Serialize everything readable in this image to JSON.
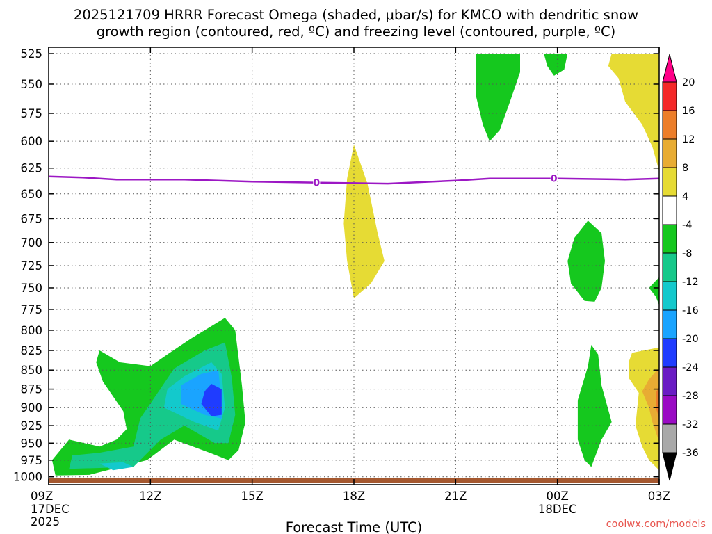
{
  "chart_data": {
    "type": "heatmap",
    "title_line1": "2025121709 HRRR Forecast Omega (shaded, μbar/s) for KMCO with dendritic snow",
    "title_line2": "growth region (contoured, red, ºC) and freezing level (contoured, purple, ºC)",
    "xlabel": "Forecast Time (UTC)",
    "credit": "coolwx.com/models",
    "x_ticks": [
      {
        "hour": 0,
        "l1": "09Z",
        "l2": "17DEC",
        "l3": "2025"
      },
      {
        "hour": 3,
        "l1": "12Z",
        "l2": "",
        "l3": ""
      },
      {
        "hour": 6,
        "l1": "15Z",
        "l2": "",
        "l3": ""
      },
      {
        "hour": 9,
        "l1": "18Z",
        "l2": "",
        "l3": ""
      },
      {
        "hour": 12,
        "l1": "21Z",
        "l2": "",
        "l3": ""
      },
      {
        "hour": 15,
        "l1": "00Z",
        "l2": "18DEC",
        "l3": ""
      },
      {
        "hour": 18,
        "l1": "03Z",
        "l2": "",
        "l3": ""
      }
    ],
    "xlim": [
      0,
      18
    ],
    "y_levels": [
      "525",
      "550",
      "575",
      "600",
      "625",
      "650",
      "675",
      "700",
      "725",
      "750",
      "775",
      "800",
      "825",
      "850",
      "875",
      "900",
      "925",
      "950",
      "975",
      "1000"
    ],
    "ylim_hpa": [
      520,
      1012
    ],
    "y_axis": "log-pressure",
    "freezing_level": {
      "label": "0",
      "color": "#9c17c4",
      "label_hours": [
        7.9,
        14.9
      ],
      "points": [
        [
          0,
          633
        ],
        [
          1,
          634
        ],
        [
          2,
          636
        ],
        [
          4,
          636
        ],
        [
          6,
          638
        ],
        [
          8,
          639
        ],
        [
          10,
          640
        ],
        [
          12,
          637
        ],
        [
          13,
          635
        ],
        [
          15,
          635
        ],
        [
          17,
          636
        ],
        [
          18,
          635
        ]
      ]
    },
    "colorbar": {
      "levels": [
        "20",
        "16",
        "12",
        "8",
        "4",
        "-4",
        "-8",
        "-12",
        "-16",
        "-20",
        "-24",
        "-28",
        "-32",
        "-36"
      ],
      "colors": [
        "#ff0088",
        "#f42828",
        "#ec7e2a",
        "#e8ac33",
        "#e6db34",
        "#ffffff",
        "#15c81e",
        "#16c98a",
        "#13c9cc",
        "#1aa4ff",
        "#1f3cff",
        "#6a1cc4",
        "#9a0bc4",
        "#a9a9a9",
        "#000000"
      ]
    },
    "shaded_regions": [
      {
        "name": "green-top-15z",
        "value": "-4 to -8",
        "color": "#15c81e",
        "points": [
          [
            14.6,
            525
          ],
          [
            15.3,
            525
          ],
          [
            15.2,
            538
          ],
          [
            14.9,
            543
          ],
          [
            14.7,
            535
          ]
        ]
      },
      {
        "name": "green-top-22z",
        "value": "-4 to -8",
        "color": "#15c81e",
        "points": [
          [
            12.6,
            525
          ],
          [
            13.9,
            525
          ],
          [
            13.9,
            540
          ],
          [
            13.6,
            565
          ],
          [
            13.3,
            590
          ],
          [
            13.0,
            600
          ],
          [
            12.8,
            585
          ],
          [
            12.6,
            560
          ],
          [
            12.6,
            540
          ]
        ]
      },
      {
        "name": "green-mid-16z",
        "value": "-4 to -8",
        "color": "#15c81e",
        "points": [
          [
            15.9,
            677
          ],
          [
            16.3,
            690
          ],
          [
            16.4,
            720
          ],
          [
            16.3,
            750
          ],
          [
            16.1,
            766
          ],
          [
            15.8,
            765
          ],
          [
            15.4,
            745
          ],
          [
            15.3,
            720
          ],
          [
            15.5,
            695
          ]
        ]
      },
      {
        "name": "green-right-edge-upper",
        "value": "-4 to -8",
        "color": "#15c81e",
        "points": [
          [
            17.7,
            750
          ],
          [
            18.0,
            738
          ],
          [
            18.0,
            770
          ],
          [
            17.9,
            760
          ]
        ]
      },
      {
        "name": "green-00z-lower",
        "value": "-4 to -8",
        "color": "#15c81e",
        "points": [
          [
            16.0,
            818
          ],
          [
            16.2,
            830
          ],
          [
            16.3,
            870
          ],
          [
            16.6,
            920
          ],
          [
            16.3,
            945
          ],
          [
            16.0,
            985
          ],
          [
            15.8,
            975
          ],
          [
            15.6,
            945
          ],
          [
            15.6,
            890
          ],
          [
            15.9,
            845
          ]
        ]
      },
      {
        "name": "green-big-low",
        "value": "-4 to -8",
        "color": "#15c81e",
        "points": [
          [
            1.5,
            825
          ],
          [
            2.1,
            840
          ],
          [
            3.0,
            845
          ],
          [
            3.5,
            830
          ],
          [
            4.2,
            810
          ],
          [
            5.2,
            785
          ],
          [
            5.5,
            800
          ],
          [
            5.7,
            870
          ],
          [
            5.8,
            920
          ],
          [
            5.6,
            960
          ],
          [
            5.3,
            975
          ],
          [
            4.8,
            965
          ],
          [
            3.7,
            945
          ],
          [
            2.9,
            975
          ],
          [
            1.2,
            997
          ],
          [
            0.2,
            998
          ],
          [
            0.1,
            975
          ],
          [
            0.6,
            945
          ],
          [
            1.5,
            955
          ],
          [
            2.0,
            945
          ],
          [
            2.3,
            930
          ],
          [
            2.2,
            905
          ],
          [
            1.6,
            865
          ],
          [
            1.4,
            840
          ]
        ]
      },
      {
        "name": "teal-big-low",
        "value": "-8 to -12",
        "color": "#16c98a",
        "points": [
          [
            3.7,
            848
          ],
          [
            4.6,
            825
          ],
          [
            5.2,
            815
          ],
          [
            5.4,
            860
          ],
          [
            5.5,
            910
          ],
          [
            5.3,
            950
          ],
          [
            4.9,
            950
          ],
          [
            4.0,
            925
          ],
          [
            3.3,
            945
          ],
          [
            2.5,
            985
          ],
          [
            0.6,
            988
          ],
          [
            0.7,
            968
          ],
          [
            1.5,
            964
          ],
          [
            2.5,
            955
          ],
          [
            2.7,
            915
          ]
        ]
      },
      {
        "name": "cyan-low",
        "value": "-12 to -16",
        "color": "#13c9cc",
        "points": [
          [
            4.0,
            858
          ],
          [
            4.8,
            840
          ],
          [
            5.1,
            855
          ],
          [
            5.2,
            900
          ],
          [
            5.0,
            932
          ],
          [
            4.3,
            920
          ],
          [
            3.4,
            900
          ],
          [
            3.5,
            875
          ]
        ]
      },
      {
        "name": "cyan-low-left",
        "value": "-12 to -16",
        "color": "#13c9cc",
        "points": [
          [
            1.5,
            980
          ],
          [
            2.2,
            978
          ],
          [
            2.5,
            985
          ],
          [
            1.9,
            990
          ]
        ]
      },
      {
        "name": "blue-low",
        "value": "-16 to -20",
        "color": "#1aa4ff",
        "points": [
          [
            4.5,
            855
          ],
          [
            5.0,
            850
          ],
          [
            5.1,
            890
          ],
          [
            5.1,
            915
          ],
          [
            4.6,
            910
          ],
          [
            3.9,
            895
          ],
          [
            3.9,
            870
          ]
        ]
      },
      {
        "name": "darkblue-core",
        "value": "-20 to -24",
        "color": "#1f3cff",
        "points": [
          [
            4.8,
            868
          ],
          [
            5.1,
            875
          ],
          [
            5.1,
            910
          ],
          [
            4.8,
            912
          ],
          [
            4.5,
            895
          ],
          [
            4.6,
            878
          ]
        ]
      },
      {
        "name": "yellow-18z",
        "value": "4 to 8",
        "color": "#e6db34",
        "points": [
          [
            9.0,
            603
          ],
          [
            9.4,
            640
          ],
          [
            9.7,
            690
          ],
          [
            9.9,
            720
          ],
          [
            9.5,
            745
          ],
          [
            9.0,
            762
          ],
          [
            8.8,
            720
          ],
          [
            8.7,
            680
          ],
          [
            8.8,
            635
          ]
        ]
      },
      {
        "name": "yellow-top-right",
        "value": "4 to 8",
        "color": "#e6db34",
        "points": [
          [
            16.6,
            525
          ],
          [
            18.0,
            525
          ],
          [
            18.0,
            628
          ],
          [
            17.8,
            605
          ],
          [
            17.5,
            585
          ],
          [
            17.0,
            565
          ],
          [
            16.8,
            545
          ],
          [
            16.5,
            535
          ]
        ]
      },
      {
        "name": "yellow-bottom-right",
        "value": "4 to 8",
        "color": "#e6db34",
        "points": [
          [
            17.2,
            828
          ],
          [
            17.9,
            822
          ],
          [
            18.0,
            822
          ],
          [
            18.0,
            990
          ],
          [
            17.7,
            975
          ],
          [
            17.5,
            955
          ],
          [
            17.3,
            925
          ],
          [
            17.4,
            880
          ],
          [
            17.1,
            860
          ],
          [
            17.1,
            840
          ]
        ]
      },
      {
        "name": "gold-bottom-right",
        "value": "8 to 12",
        "color": "#e8ac33",
        "points": [
          [
            17.7,
            862
          ],
          [
            17.9,
            852
          ],
          [
            18.0,
            850
          ],
          [
            18.0,
            948
          ],
          [
            17.8,
            920
          ],
          [
            17.7,
            900
          ],
          [
            17.5,
            878
          ]
        ]
      },
      {
        "name": "orange-bottom-right",
        "value": "12 to 16",
        "color": "#ec7e2a",
        "points": [
          [
            17.9,
            880
          ],
          [
            18.0,
            872
          ],
          [
            18.0,
            915
          ],
          [
            17.9,
            900
          ]
        ]
      }
    ]
  }
}
